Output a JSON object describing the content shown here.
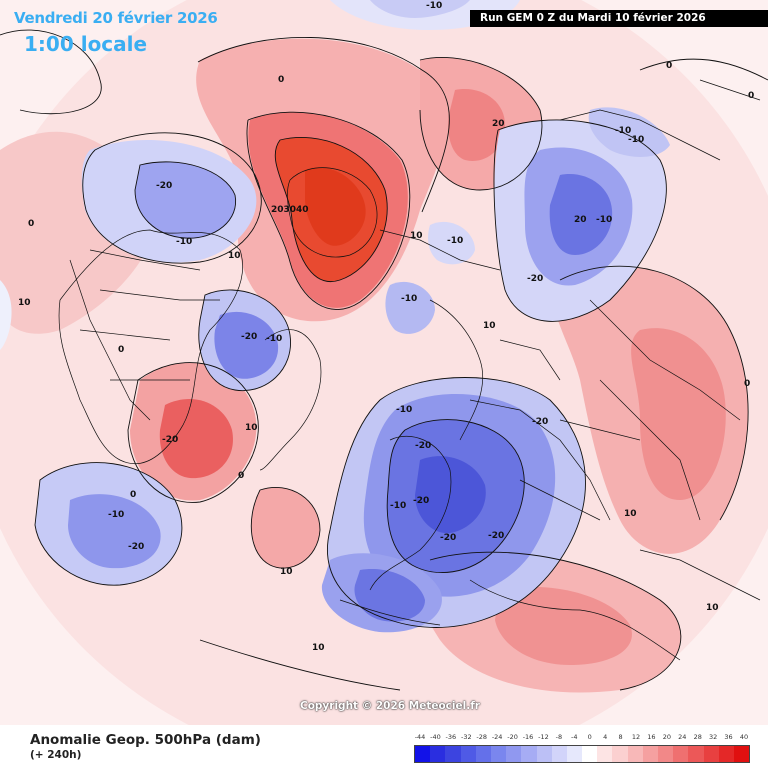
{
  "header": {
    "date_text": "Vendredi 20 février 2026",
    "time_text": "1:00 locale",
    "run_text": "Run GEM 0 Z du Mardi 10 février 2026",
    "text_color": "#3aaef2"
  },
  "footer": {
    "title": "Anomalie Geop. 500hPa (dam)",
    "subtitle": "(+ 240h)",
    "copyright": "Copyright © 2026 Meteociel.fr"
  },
  "legend": {
    "labels": [
      "-44",
      "-40",
      "-36",
      "-32",
      "-28",
      "-24",
      "-20",
      "-16",
      "-12",
      "-8",
      "-4",
      "0",
      "4",
      "8",
      "12",
      "16",
      "20",
      "24",
      "28",
      "32",
      "36",
      "40"
    ],
    "colors": [
      "#1212e8",
      "#2a2ee0",
      "#3c44e0",
      "#4f5ae6",
      "#6470ea",
      "#7a86ee",
      "#9098f0",
      "#a6acf4",
      "#bcc0f6",
      "#d2d4fa",
      "#e6e8fc",
      "#ffffff",
      "#fde4e4",
      "#fbd0d0",
      "#f8b8b8",
      "#f5a0a0",
      "#f28888",
      "#ef7070",
      "#ec5858",
      "#e84040",
      "#e42828",
      "#e01010"
    ]
  },
  "contour_labels": [
    "-10",
    "0",
    "-20",
    "-10",
    "10",
    "0",
    "20",
    "2030",
    "40",
    "10",
    "-10",
    "20",
    "-10",
    "-10",
    "-10",
    "-20",
    "-10",
    "-20",
    "-10",
    "10",
    "-20",
    "0",
    "-20",
    "-10",
    "10",
    "0",
    "-20",
    "10",
    "-20",
    "-10",
    "-20",
    "-20",
    "-10",
    "0",
    "10",
    "0",
    "-20",
    "10",
    "10",
    "0",
    "0",
    "10"
  ],
  "map_colors": {
    "pos_light": "#fbdede",
    "pos_mid": "#f5a9a9",
    "pos_strong": "#ef7070",
    "pos_core": "#e84a30",
    "neg_light": "#e3e4fa",
    "neg_mid": "#b8bcf2",
    "neg_strong": "#8a92ea",
    "neg_core": "#5a64e0",
    "land_line": "#111111"
  }
}
